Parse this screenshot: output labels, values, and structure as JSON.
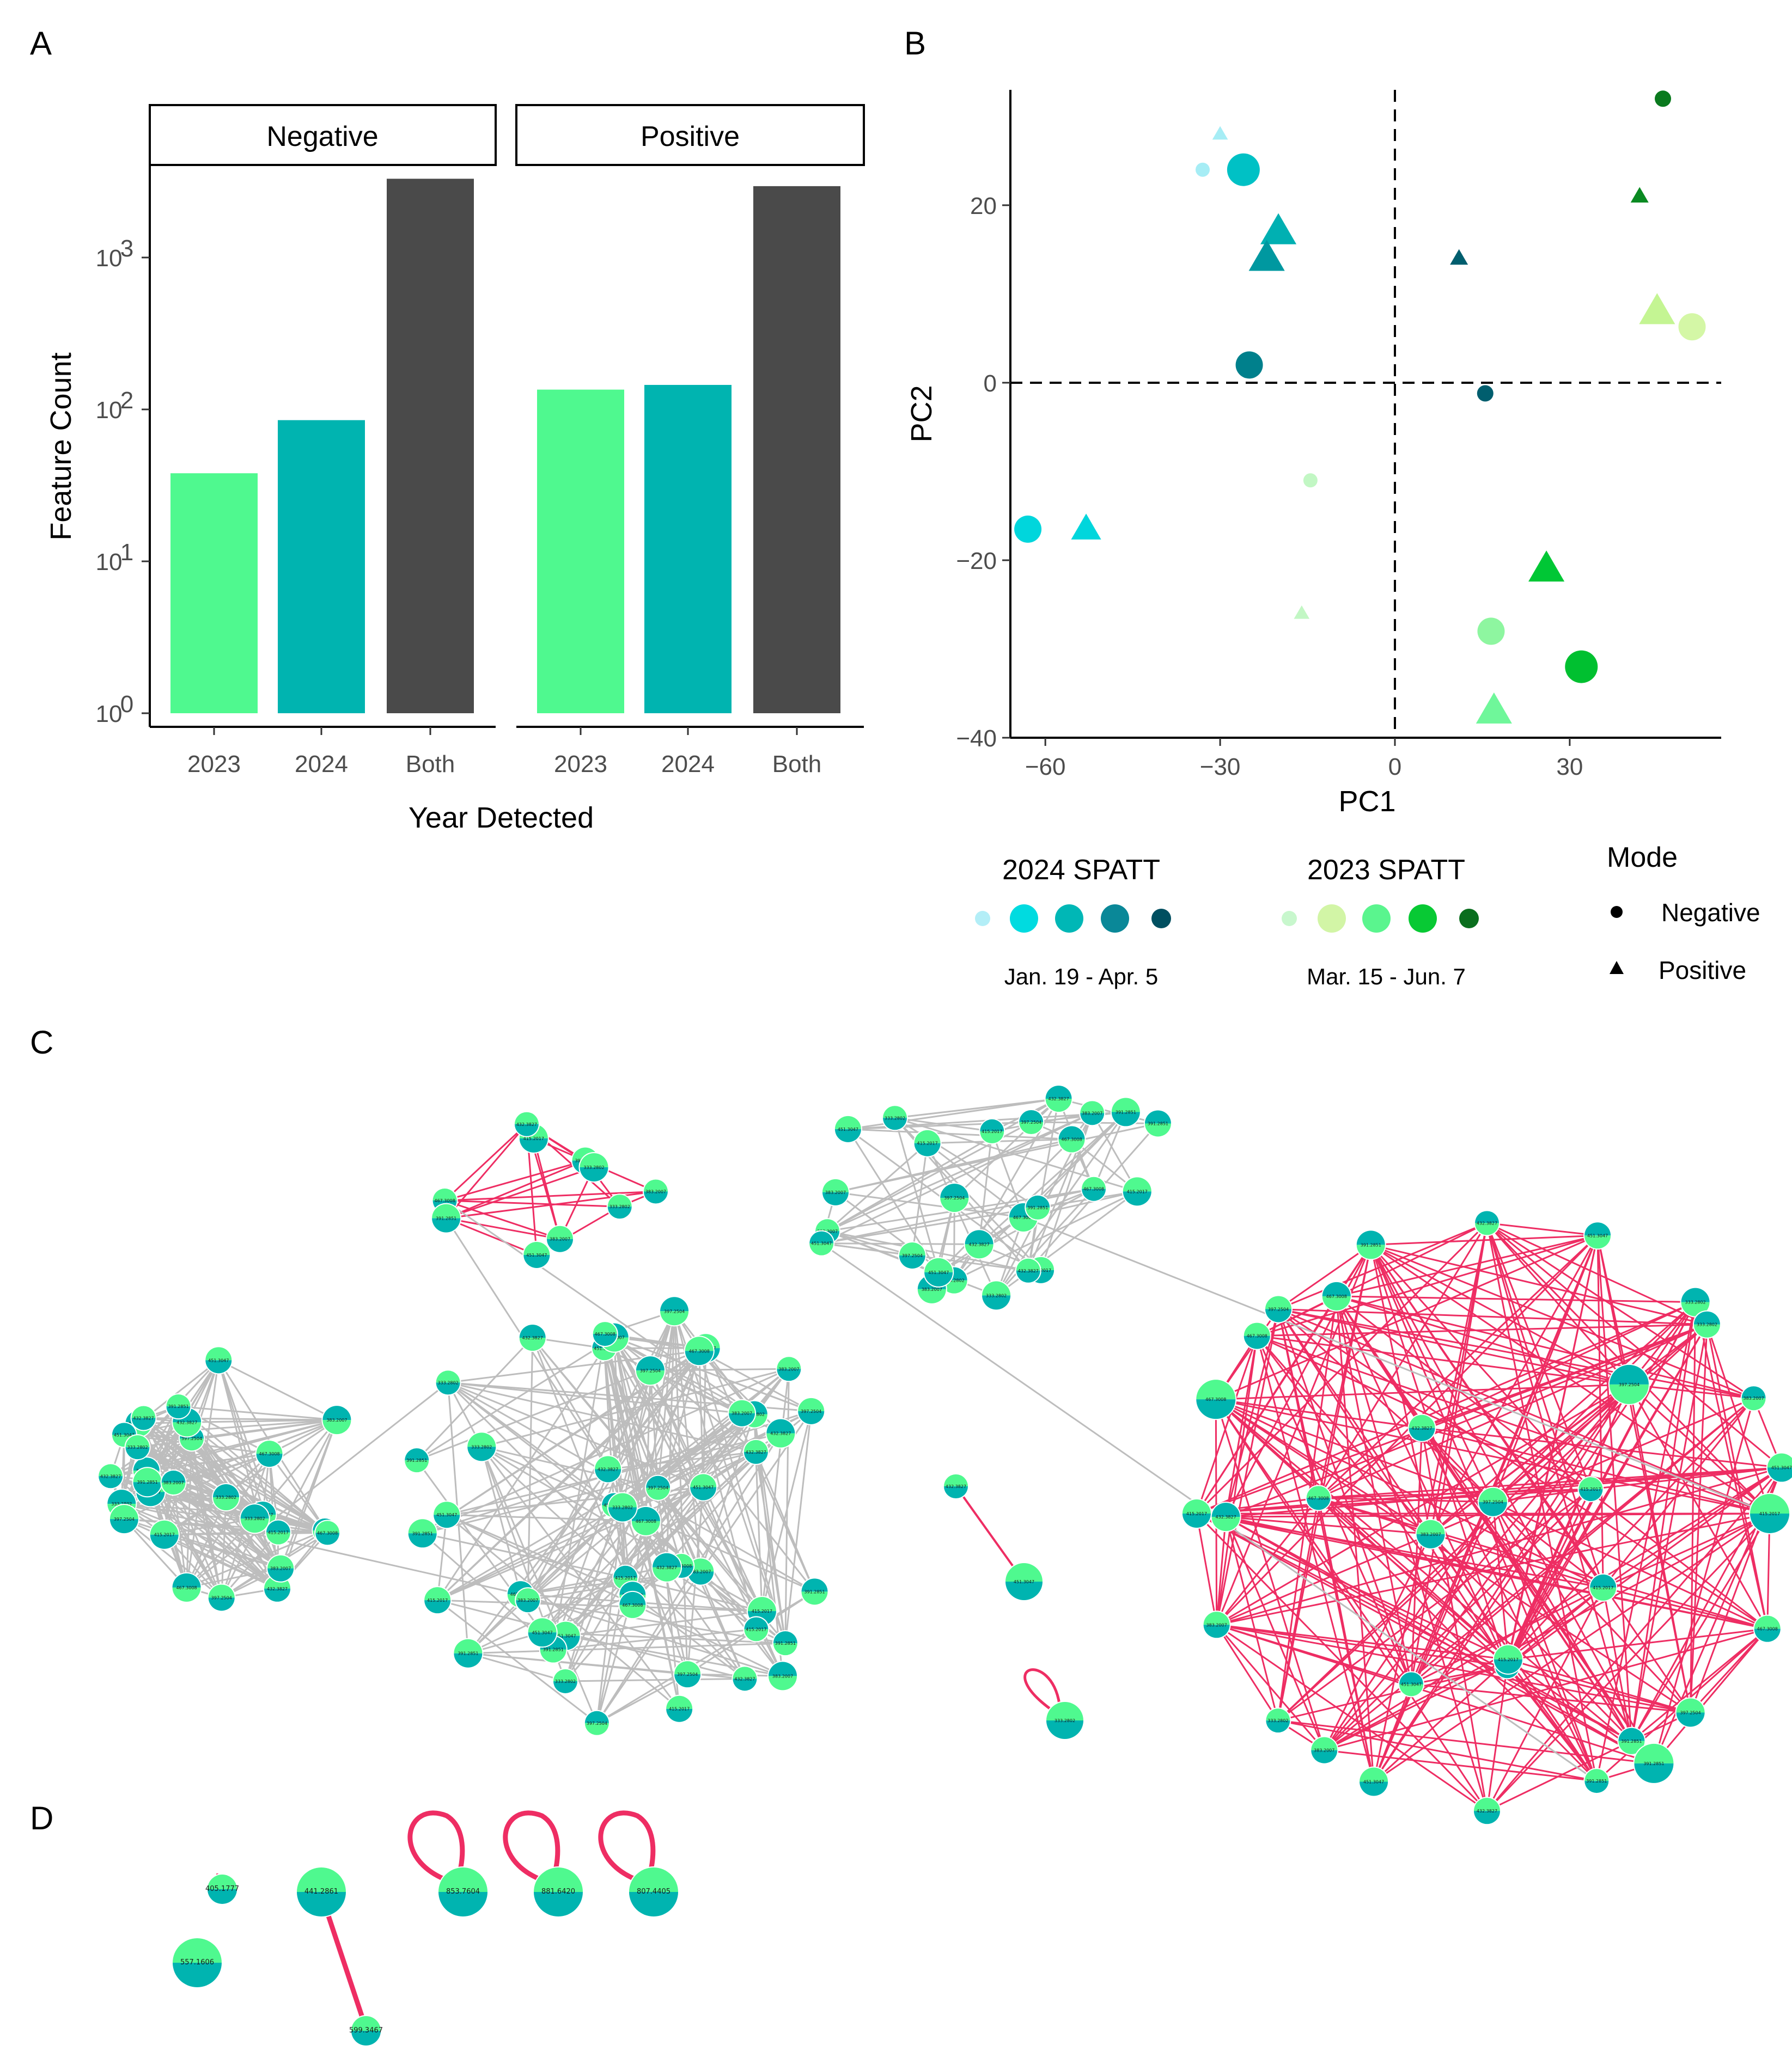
{
  "panel_labels": {
    "a": "A",
    "b": "B",
    "c": "C",
    "d": "D"
  },
  "chart_data": [
    {
      "panel": "A",
      "type": "bar",
      "facets": [
        "Negative",
        "Positive"
      ],
      "categories": [
        "2023",
        "2024",
        "Both"
      ],
      "series": [
        {
          "facet": "Negative",
          "values": [
            38,
            85,
            3300
          ]
        },
        {
          "facet": "Positive",
          "values": [
            135,
            145,
            2950
          ]
        }
      ],
      "colors": {
        "2023": "#4ff98f",
        "2024": "#00b4b0",
        "Both": "#4a4a4a"
      },
      "xlabel": "Year Detected",
      "ylabel": "Feature Count",
      "yscale": "log10",
      "ylim": [
        1,
        4000
      ],
      "yticks": [
        {
          "value": 1,
          "base": "10",
          "exp": "0"
        },
        {
          "value": 10,
          "base": "10",
          "exp": "1"
        },
        {
          "value": 100,
          "base": "10",
          "exp": "2"
        },
        {
          "value": 1000,
          "base": "10",
          "exp": "3"
        }
      ]
    },
    {
      "panel": "B",
      "type": "scatter",
      "xlabel": "PC1",
      "ylabel": "PC2",
      "xlim": [
        -66,
        56
      ],
      "ylim": [
        -40,
        33
      ],
      "xticks": [
        -60,
        -30,
        0,
        30
      ],
      "yticks": [
        -40,
        -20,
        0,
        20
      ],
      "reference_lines": {
        "x": 0,
        "y": 0,
        "style": "dashed"
      },
      "points": [
        {
          "pc1": -33,
          "pc2": 24,
          "mode": "Negative",
          "color": "#a6edf5",
          "size": "xs"
        },
        {
          "pc1": -30,
          "pc2": 28,
          "mode": "Positive",
          "color": "#a6edf5",
          "size": "xs"
        },
        {
          "pc1": -26,
          "pc2": 24,
          "mode": "Negative",
          "color": "#00c1c5",
          "size": "lg"
        },
        {
          "pc1": -20,
          "pc2": 17,
          "mode": "Positive",
          "color": "#00b0b2",
          "size": "lg"
        },
        {
          "pc1": -22,
          "pc2": 14,
          "mode": "Positive",
          "color": "#0098a0",
          "size": "lg"
        },
        {
          "pc1": -25,
          "pc2": 2,
          "mode": "Negative",
          "color": "#00808c",
          "size": "md"
        },
        {
          "pc1": -63,
          "pc2": -16.5,
          "mode": "Negative",
          "color": "#00d6dc",
          "size": "md"
        },
        {
          "pc1": -53,
          "pc2": -16.5,
          "mode": "Positive",
          "color": "#00d6dc",
          "size": "md"
        },
        {
          "pc1": 11,
          "pc2": 14,
          "mode": "Positive",
          "color": "#005e6e",
          "size": "sm"
        },
        {
          "pc1": 15.5,
          "pc2": -1.2,
          "mode": "Negative",
          "color": "#005e6e",
          "size": "sm"
        },
        {
          "pc1": -14.5,
          "pc2": -11,
          "mode": "Negative",
          "color": "#c2f7c4",
          "size": "xs"
        },
        {
          "pc1": -16,
          "pc2": -26,
          "mode": "Positive",
          "color": "#c2f7c4",
          "size": "xs"
        },
        {
          "pc1": 16.5,
          "pc2": -28,
          "mode": "Negative",
          "color": "#8ef6a0",
          "size": "md"
        },
        {
          "pc1": 17,
          "pc2": -37,
          "mode": "Positive",
          "color": "#6ff79a",
          "size": "lg"
        },
        {
          "pc1": 26,
          "pc2": -21,
          "mode": "Positive",
          "color": "#00c735",
          "size": "lg"
        },
        {
          "pc1": 32,
          "pc2": -32,
          "mode": "Negative",
          "color": "#00c030",
          "size": "lg"
        },
        {
          "pc1": 46,
          "pc2": 32,
          "mode": "Negative",
          "color": "#0a7a1e",
          "size": "sm"
        },
        {
          "pc1": 42,
          "pc2": 21,
          "mode": "Positive",
          "color": "#0a8a22",
          "size": "sm"
        },
        {
          "pc1": 45,
          "pc2": 8,
          "mode": "Positive",
          "color": "#c4f593",
          "size": "lg"
        },
        {
          "pc1": 51,
          "pc2": 6.3,
          "mode": "Negative",
          "color": "#d4f7a6",
          "size": "md"
        }
      ],
      "legend": {
        "spatt_2024": {
          "title": "2024 SPATT",
          "range": "Jan. 19 - Apr. 5",
          "colors": [
            "#b3eef7",
            "#00dbe0",
            "#00b7b6",
            "#0a8898",
            "#004f60"
          ]
        },
        "spatt_2023": {
          "title": "2023 SPATT",
          "range": "Mar. 15 - Jun. 7",
          "colors": [
            "#c8f7cd",
            "#d2f5a6",
            "#5af58e",
            "#08c934",
            "#0a6e1e"
          ]
        },
        "mode": {
          "title": "Mode",
          "items": [
            "Negative",
            "Positive"
          ]
        }
      }
    }
  ],
  "network_c": {
    "colors": {
      "node_top": "#00b4b0",
      "node_bottom": "#4ff98f",
      "edge_grey": "#bdbdbd",
      "edge_red": "#ee2d63"
    },
    "labels": [
      "432.3827",
      "451.3047",
      "333.2802",
      "383.2007",
      "415.2017",
      "467.3008",
      "397.2504",
      "391.2851"
    ]
  },
  "network_d": {
    "labels": [
      "405.1777",
      "441.2861",
      "557.1606",
      "599.3467",
      "853.7604",
      "881.6420",
      "807.4405"
    ]
  }
}
